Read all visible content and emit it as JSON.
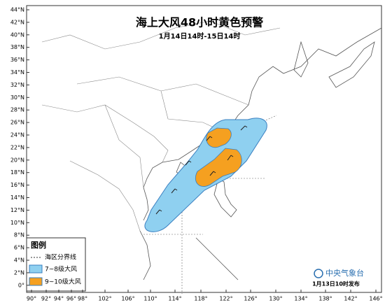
{
  "header": {
    "title": "海上大风48小时黄色预警",
    "subtitle": "1月14日14时-15日14时"
  },
  "axes": {
    "latitude_labels": [
      "44°N",
      "42°N",
      "40°N",
      "38°N",
      "36°N",
      "34°N",
      "32°N",
      "30°N",
      "28°N",
      "26°N",
      "24°N",
      "22°N",
      "20°N",
      "18°N",
      "16°N",
      "14°N",
      "12°N",
      "10°N",
      "8°N",
      "6°N",
      "4°N",
      "2°N",
      "0°"
    ],
    "longitude_labels": [
      "90°",
      "92°",
      "94°",
      "96°",
      "98°",
      "102°",
      "106°",
      "110°",
      "114°",
      "118°",
      "122°",
      "126°",
      "130°",
      "134°",
      "138°",
      "142°",
      "146°"
    ]
  },
  "legend": {
    "title": "图例",
    "items": [
      "海区分界线",
      "7~8级大风",
      "9~10级大风"
    ]
  },
  "footer": {
    "agency": "中央气象台",
    "issued": "1月13日10时发布"
  }
}
